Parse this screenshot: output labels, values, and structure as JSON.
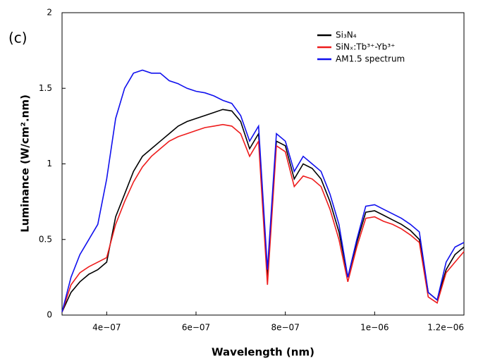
{
  "chart_data": {
    "type": "line",
    "annotation": "(c)",
    "xlabel": "Wavelength (nm)",
    "ylabel": "Luminance (W/cm².nm)",
    "x": [
      3e-07,
      3.2e-07,
      3.4e-07,
      3.6e-07,
      3.8e-07,
      4e-07,
      4.2e-07,
      4.4e-07,
      4.6e-07,
      4.8e-07,
      5e-07,
      5.2e-07,
      5.4e-07,
      5.6e-07,
      5.8e-07,
      6e-07,
      6.2e-07,
      6.4e-07,
      6.6e-07,
      6.8e-07,
      7e-07,
      7.2e-07,
      7.4e-07,
      7.6e-07,
      7.8e-07,
      8e-07,
      8.2e-07,
      8.4e-07,
      8.6e-07,
      8.8e-07,
      9e-07,
      9.2e-07,
      9.4e-07,
      9.6e-07,
      9.8e-07,
      1e-06,
      1.02e-06,
      1.04e-06,
      1.06e-06,
      1.08e-06,
      1.1e-06,
      1.12e-06,
      1.14e-06,
      1.16e-06,
      1.18e-06,
      1.2e-06
    ],
    "series": [
      {
        "name": "Si₃N₄",
        "color": "#000000",
        "values": [
          0.02,
          0.15,
          0.22,
          0.27,
          0.3,
          0.35,
          0.65,
          0.8,
          0.95,
          1.05,
          1.1,
          1.15,
          1.2,
          1.25,
          1.28,
          1.3,
          1.32,
          1.34,
          1.36,
          1.35,
          1.28,
          1.1,
          1.2,
          0.25,
          1.15,
          1.12,
          0.9,
          1.0,
          0.97,
          0.9,
          0.75,
          0.55,
          0.25,
          0.48,
          0.68,
          0.69,
          0.66,
          0.63,
          0.6,
          0.56,
          0.5,
          0.15,
          0.1,
          0.3,
          0.4,
          0.45
        ]
      },
      {
        "name": "SiNₓ:Tb³⁺-Yb³⁺",
        "color": "#ee1c1c",
        "values": [
          0.02,
          0.2,
          0.28,
          0.32,
          0.35,
          0.38,
          0.6,
          0.75,
          0.88,
          0.98,
          1.05,
          1.1,
          1.15,
          1.18,
          1.2,
          1.22,
          1.24,
          1.25,
          1.26,
          1.25,
          1.2,
          1.05,
          1.15,
          0.2,
          1.12,
          1.08,
          0.85,
          0.92,
          0.9,
          0.85,
          0.7,
          0.5,
          0.22,
          0.45,
          0.64,
          0.65,
          0.62,
          0.6,
          0.57,
          0.53,
          0.48,
          0.12,
          0.08,
          0.28,
          0.35,
          0.42
        ]
      },
      {
        "name": "AM1.5 spectrum",
        "color": "#1010ee",
        "values": [
          0.02,
          0.25,
          0.4,
          0.5,
          0.6,
          0.9,
          1.3,
          1.5,
          1.6,
          1.62,
          1.6,
          1.6,
          1.55,
          1.53,
          1.5,
          1.48,
          1.47,
          1.45,
          1.42,
          1.4,
          1.32,
          1.15,
          1.25,
          0.3,
          1.2,
          1.15,
          0.95,
          1.05,
          1.0,
          0.95,
          0.8,
          0.6,
          0.25,
          0.5,
          0.72,
          0.73,
          0.7,
          0.67,
          0.64,
          0.6,
          0.55,
          0.15,
          0.1,
          0.35,
          0.45,
          0.48
        ]
      }
    ],
    "xlim": [
      3e-07,
      1.2e-06
    ],
    "ylim": [
      0,
      2
    ],
    "xticks": [
      {
        "value": 4e-07,
        "label": "4e−07"
      },
      {
        "value": 6e-07,
        "label": "6e−07"
      },
      {
        "value": 8e-07,
        "label": "8e−07"
      },
      {
        "value": 1e-06,
        "label": "1e−06"
      },
      {
        "value": 1.2e-06,
        "label": "1.2e−06"
      }
    ],
    "yticks": [
      0,
      0.5,
      1,
      1.5,
      2
    ],
    "legend": "upper right"
  }
}
